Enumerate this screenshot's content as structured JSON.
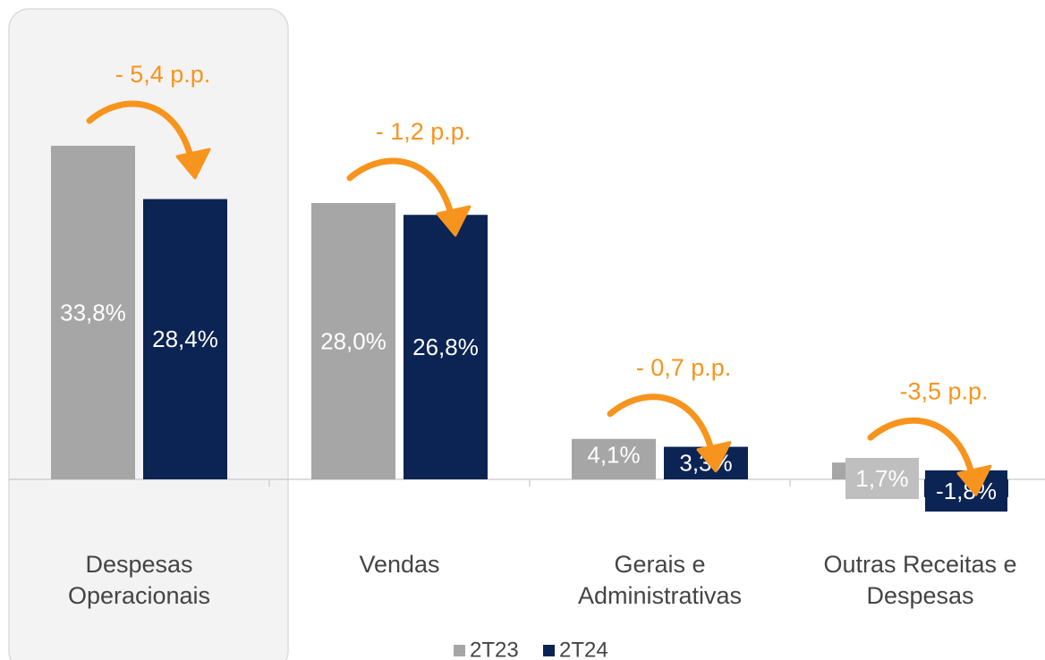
{
  "chart_data": {
    "type": "bar",
    "categories": [
      [
        "Despesas",
        "Operacionais"
      ],
      [
        "Vendas"
      ],
      [
        "Gerais e",
        "Administrativas"
      ],
      [
        "Outras Receitas e",
        "Despesas"
      ]
    ],
    "series": [
      {
        "name": "2T23",
        "color": "#a6a6a6",
        "values": [
          33.8,
          28.0,
          4.1,
          1.7
        ],
        "value_labels": [
          "33,8%",
          "28,0%",
          "4,1%",
          "1,7%"
        ]
      },
      {
        "name": "2T24",
        "color": "#0b2454",
        "values": [
          28.4,
          26.8,
          3.3,
          -1.8
        ],
        "value_labels": [
          "28,4%",
          "26,8%",
          "3,3%",
          "-1,8%"
        ]
      }
    ],
    "annotations": [
      "- 5,4 p.p.",
      "- 1,2 p.p.",
      "- 0,7 p.p.",
      "-3,5 p.p."
    ],
    "annotation_color": "#f7941d"
  }
}
